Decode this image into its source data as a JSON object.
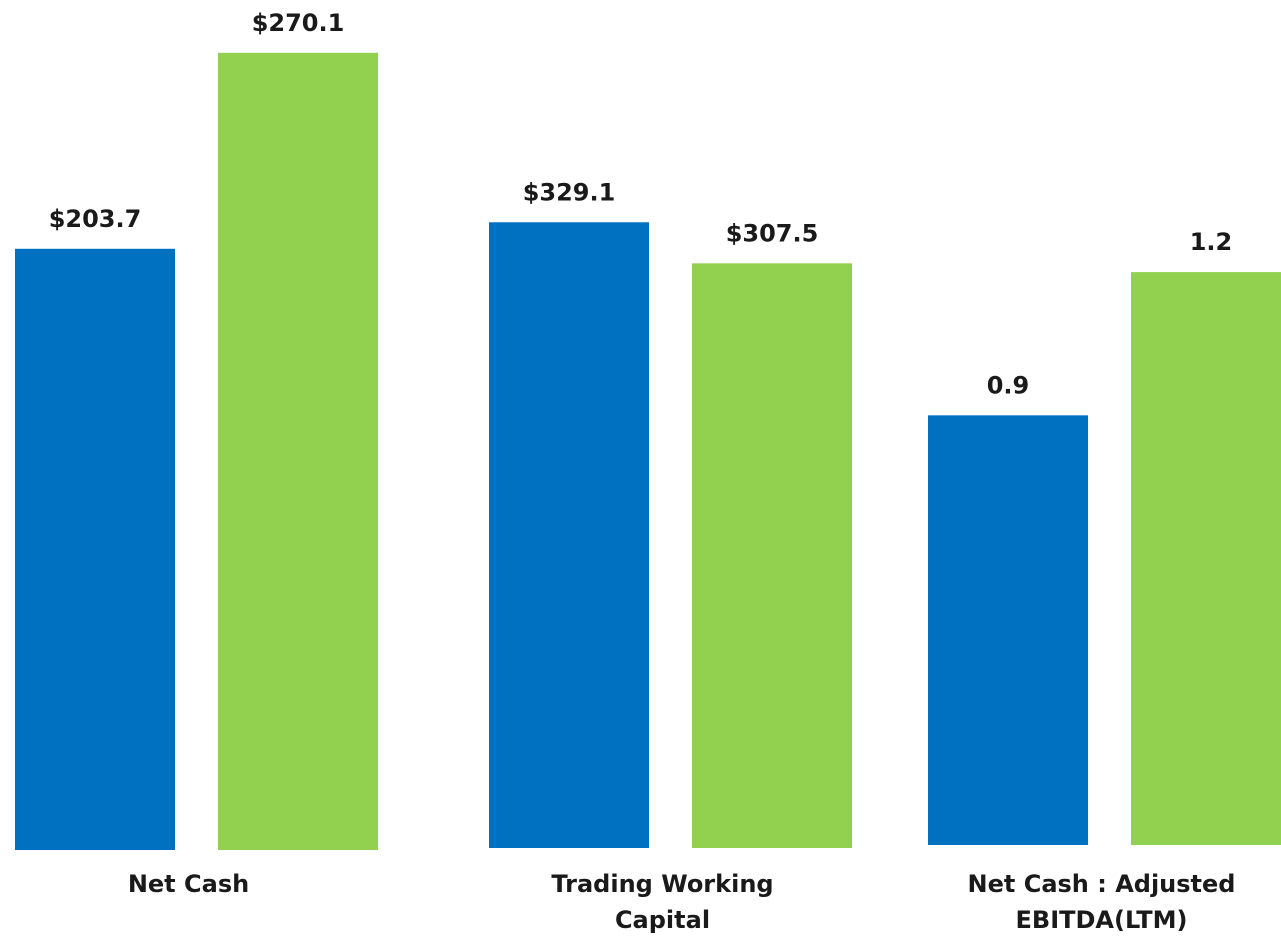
{
  "chart_data": [
    {
      "type": "bar",
      "categories": [
        "Net Cash"
      ],
      "ylim": [
        0,
        288
      ],
      "series": [
        {
          "color": "#0070c0",
          "values": [
            203.7
          ],
          "value_labels": [
            "$203.7"
          ]
        },
        {
          "color": "#92d050",
          "values": [
            270.1
          ],
          "value_labels": [
            "$270.1"
          ]
        }
      ]
    },
    {
      "type": "bar",
      "categories": [
        "Trading Working Capital"
      ],
      "ylim": [
        0,
        446
      ],
      "series": [
        {
          "color": "#0070c0",
          "values": [
            329.1
          ],
          "value_labels": [
            "$329.1"
          ]
        },
        {
          "color": "#92d050",
          "values": [
            307.5
          ],
          "value_labels": [
            "$307.5"
          ]
        }
      ]
    },
    {
      "type": "bar",
      "categories": [
        "Net Cash : Adjusted EBITDA(LTM)"
      ],
      "ylim": [
        0,
        1.77
      ],
      "series": [
        {
          "color": "#0070c0",
          "values": [
            0.9
          ]
        },
        {
          "color": "#92d050",
          "values": [
            1.2
          ]
        }
      ]
    }
  ]
}
